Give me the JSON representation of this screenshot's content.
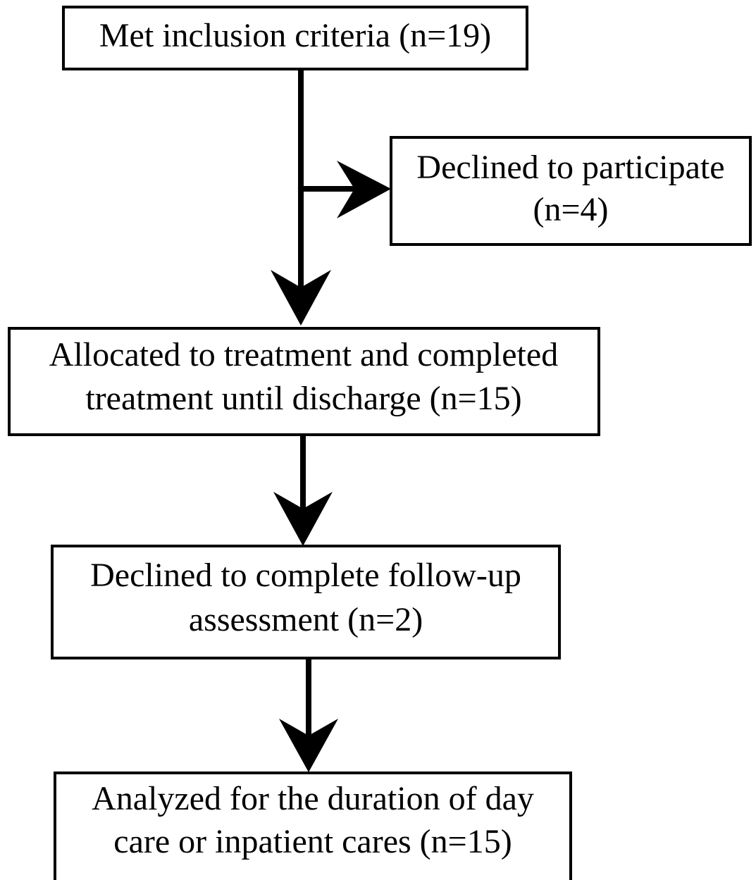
{
  "nodes": [
    {
      "lines": [
        "Met inclusion criteria (n=19)"
      ]
    },
    {
      "lines": [
        "Declined to participate",
        "(n=4)"
      ]
    },
    {
      "lines": [
        "Allocated to treatment and completed",
        "treatment until discharge (n=15)"
      ]
    },
    {
      "lines": [
        "Declined to complete follow-up",
        "assessment (n=2)"
      ]
    },
    {
      "lines": [
        "Analyzed for the duration of day",
        "care or inpatient cares (n=15)"
      ]
    }
  ]
}
